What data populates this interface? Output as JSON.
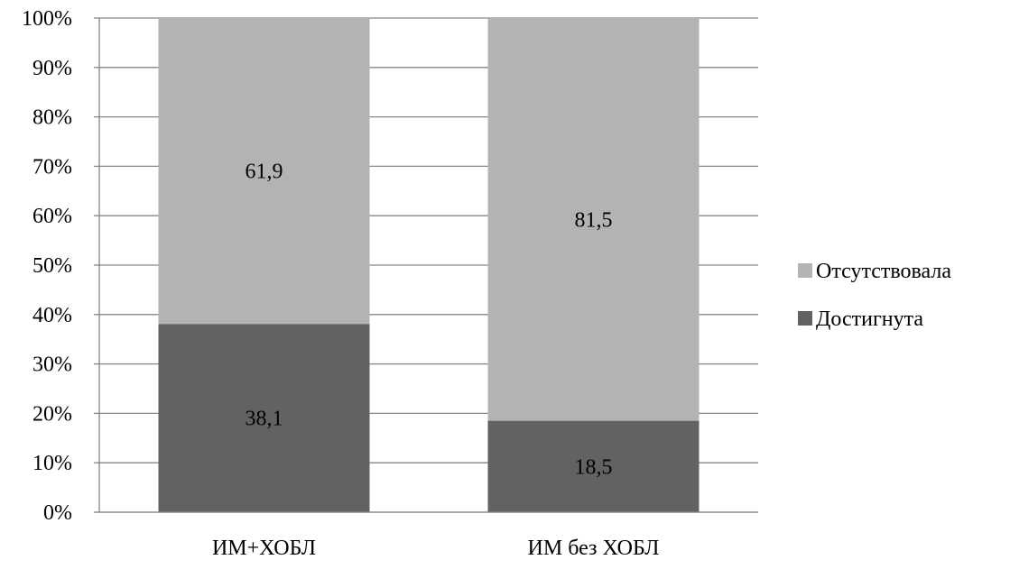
{
  "chart_data": {
    "type": "bar",
    "stacked": true,
    "percent_stacked": true,
    "categories": [
      "ИМ+ХОБЛ",
      "ИМ без ХОБЛ"
    ],
    "series": [
      {
        "name": "Достигнута",
        "values": [
          38.1,
          18.5
        ],
        "labels": [
          "38,1",
          "18,5"
        ],
        "color": "#626262"
      },
      {
        "name": "Отсутствовала",
        "values": [
          61.9,
          81.5
        ],
        "labels": [
          "61,9",
          "81,5"
        ],
        "color": "#b3b3b3"
      }
    ],
    "y_ticks": [
      "0%",
      "10%",
      "20%",
      "30%",
      "40%",
      "50%",
      "60%",
      "70%",
      "80%",
      "90%",
      "100%"
    ],
    "ylim": [
      0,
      100
    ],
    "grid": true,
    "legend": "right",
    "legend_order": [
      "Отсутствовала",
      "Достигнута"
    ]
  }
}
